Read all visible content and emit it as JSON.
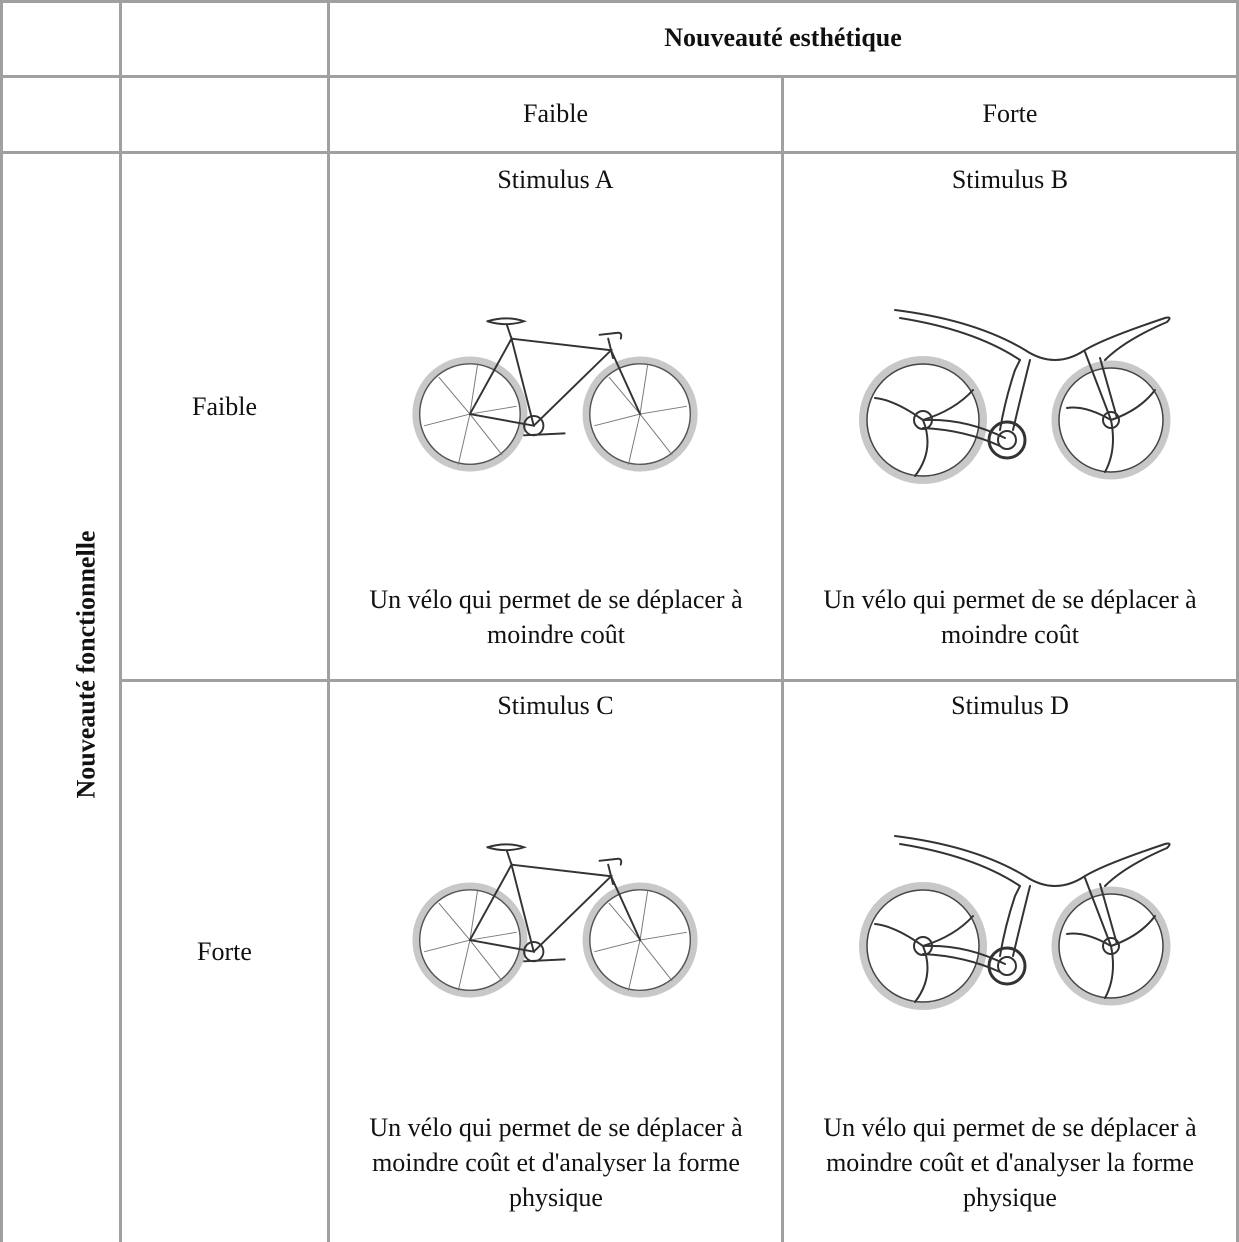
{
  "table": {
    "column_header": "Nouveauté esthétique",
    "column_levels": [
      "Faible",
      "Forte"
    ],
    "row_header": "Nouveauté fonctionnelle",
    "rows": [
      {
        "level": "Faible",
        "cells": [
          {
            "stimulus": "Stimulus A",
            "description": "Un vélo qui permet de se déplacer à moindre coût"
          },
          {
            "stimulus": "Stimulus B",
            "description": "Un vélo qui permet de se déplacer à moindre coût"
          }
        ]
      },
      {
        "level": "Forte",
        "cells": [
          {
            "stimulus": "Stimulus C",
            "description": "Un vélo qui permet de se déplacer à moindre coût et d'analyser la forme physique"
          },
          {
            "stimulus": "Stimulus D",
            "description": "Un vélo qui permet de se déplacer à moindre coût et d'analyser la forme physique"
          }
        ]
      }
    ]
  }
}
